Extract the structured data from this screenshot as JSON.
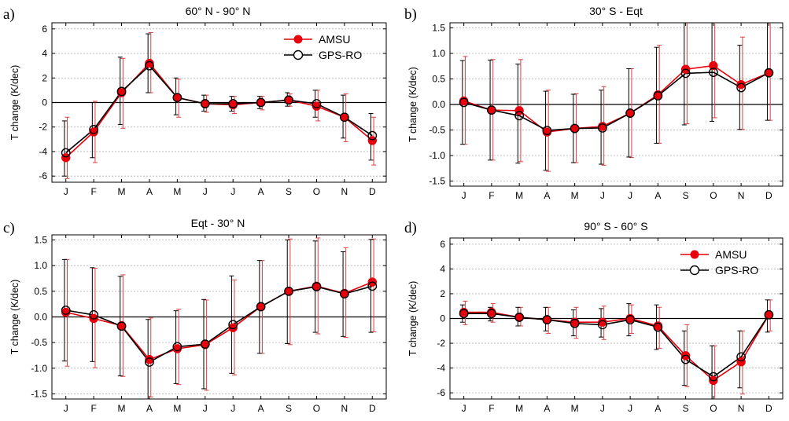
{
  "colors": {
    "amsu": "#e8000b",
    "amsu_error": "#e04040",
    "gps": "#000000",
    "grid": "#b0b0b0",
    "zero_line": "#000000"
  },
  "chart_data": [
    {
      "type": "line",
      "panel_label": "a)",
      "title": "60° N - 90° N",
      "ylabel": "T change (K/dec)",
      "xlabel": "",
      "categories": [
        "J",
        "F",
        "M",
        "A",
        "M",
        "J",
        "J",
        "A",
        "S",
        "O",
        "N",
        "D"
      ],
      "ylim": [
        -6.5,
        6.5
      ],
      "yticks": [
        -6,
        -4,
        -2,
        0,
        2,
        4,
        6
      ],
      "ytick_labels": [
        "-6",
        "-4",
        "-2",
        "0",
        "2",
        "4",
        "6"
      ],
      "grid": "horizontal dotted",
      "legend": "top-right",
      "series": [
        {
          "name": "AMSU",
          "values": [
            -4.5,
            -2.4,
            0.8,
            3.2,
            0.4,
            -0.1,
            -0.2,
            0.0,
            0.2,
            -0.3,
            -1.2,
            -3.1
          ],
          "err_low": [
            -6.2,
            -4.9,
            -2.1,
            0.8,
            -1.2,
            -0.8,
            -0.9,
            -0.6,
            -0.3,
            -1.5,
            -3.2,
            -5.1
          ],
          "err_high": [
            -1.2,
            0.1,
            3.6,
            5.7,
            1.9,
            0.6,
            0.5,
            0.5,
            0.7,
            1.0,
            0.7,
            -1.2
          ]
        },
        {
          "name": "GPS-RO",
          "values": [
            -4.1,
            -2.2,
            0.9,
            3.0,
            0.4,
            -0.1,
            -0.1,
            0.0,
            0.2,
            -0.1,
            -1.2,
            -2.7
          ],
          "err_low": [
            -6.0,
            -4.5,
            -1.8,
            0.8,
            -1.0,
            -0.7,
            -0.7,
            -0.5,
            -0.3,
            -1.2,
            -2.9,
            -4.7
          ],
          "err_high": [
            -1.5,
            0.0,
            3.7,
            5.6,
            2.0,
            0.6,
            0.5,
            0.5,
            0.8,
            1.0,
            0.6,
            -0.9
          ]
        }
      ]
    },
    {
      "type": "line",
      "panel_label": "b)",
      "title": "30° S - Eqt",
      "ylabel": "T change (K/dec)",
      "xlabel": "",
      "categories": [
        "J",
        "F",
        "M",
        "A",
        "M",
        "J",
        "J",
        "A",
        "S",
        "O",
        "N",
        "D"
      ],
      "ylim": [
        -1.6,
        1.6
      ],
      "yticks": [
        -1.5,
        -1.0,
        -0.5,
        0.0,
        0.5,
        1.0,
        1.5
      ],
      "ytick_labels": [
        "-1.5",
        "-1.0",
        "-0.5",
        "0.0",
        "0.5",
        "1.0",
        "1.5"
      ],
      "grid": "horizontal dotted",
      "legend": "none",
      "series": [
        {
          "name": "AMSU",
          "values": [
            0.07,
            -0.11,
            -0.12,
            -0.54,
            -0.47,
            -0.43,
            -0.17,
            0.19,
            0.69,
            0.76,
            0.39,
            0.62
          ],
          "err_low": [
            -0.78,
            -1.09,
            -1.12,
            -1.31,
            -1.14,
            -1.19,
            -1.04,
            -0.76,
            -0.38,
            -0.26,
            -0.49,
            -0.31
          ],
          "err_high": [
            0.94,
            0.88,
            0.88,
            0.28,
            0.21,
            0.35,
            0.7,
            1.16,
            1.6,
            1.6,
            1.32,
            1.6
          ]
        },
        {
          "name": "GPS-RO",
          "values": [
            0.04,
            -0.11,
            -0.22,
            -0.51,
            -0.47,
            -0.46,
            -0.17,
            0.17,
            0.61,
            0.63,
            0.33,
            0.62
          ],
          "err_low": [
            -0.78,
            -1.09,
            -1.15,
            -1.29,
            -1.14,
            -1.17,
            -1.03,
            -0.76,
            -0.4,
            -0.33,
            -0.49,
            -0.31
          ],
          "err_high": [
            0.86,
            0.87,
            0.79,
            0.26,
            0.2,
            0.28,
            0.7,
            1.12,
            1.6,
            1.6,
            1.16,
            1.6
          ]
        }
      ]
    },
    {
      "type": "line",
      "panel_label": "c)",
      "title": "Eqt - 30° N",
      "ylabel": "T change (K/dec)",
      "xlabel": "",
      "categories": [
        "J",
        "F",
        "M",
        "A",
        "M",
        "J",
        "J",
        "A",
        "S",
        "O",
        "N",
        "D"
      ],
      "ylim": [
        -1.6,
        1.6
      ],
      "yticks": [
        -1.5,
        -1.0,
        -0.5,
        0.0,
        0.5,
        1.0,
        1.5
      ],
      "ytick_labels": [
        "-1.5",
        "-1.0",
        "-0.5",
        "0.0",
        "0.5",
        "1.0",
        "1.5"
      ],
      "grid": "horizontal dotted",
      "legend": "none",
      "series": [
        {
          "name": "AMSU",
          "values": [
            0.09,
            -0.03,
            -0.17,
            -0.83,
            -0.62,
            -0.54,
            -0.21,
            0.2,
            0.5,
            0.6,
            0.46,
            0.68
          ],
          "err_low": [
            -0.96,
            -0.99,
            -1.16,
            -1.56,
            -1.32,
            -1.43,
            -1.13,
            -0.71,
            -0.54,
            -0.33,
            -0.4,
            -0.29
          ],
          "err_high": [
            1.12,
            0.95,
            0.82,
            -0.02,
            0.15,
            0.33,
            0.72,
            1.1,
            1.52,
            1.54,
            1.35,
            1.52
          ]
        },
        {
          "name": "GPS-RO",
          "values": [
            0.13,
            0.04,
            -0.18,
            -0.88,
            -0.58,
            -0.53,
            -0.15,
            0.2,
            0.5,
            0.59,
            0.45,
            0.6
          ],
          "err_low": [
            -0.86,
            -0.87,
            -1.15,
            -1.6,
            -1.3,
            -1.4,
            -1.1,
            -0.71,
            -0.52,
            -0.3,
            -0.38,
            -0.3
          ],
          "err_high": [
            1.12,
            0.96,
            0.79,
            -0.05,
            0.12,
            0.34,
            0.8,
            1.1,
            1.5,
            1.48,
            1.27,
            1.51
          ]
        }
      ]
    },
    {
      "type": "line",
      "panel_label": "d)",
      "title": "90° S - 60° S",
      "ylabel": "T change (K/dec)",
      "xlabel": "",
      "categories": [
        "J",
        "F",
        "M",
        "A",
        "M",
        "J",
        "J",
        "A",
        "S",
        "O",
        "N",
        "D"
      ],
      "ylim": [
        -6.5,
        6.5
      ],
      "yticks": [
        -6,
        -4,
        -2,
        0,
        2,
        4,
        6
      ],
      "ytick_labels": [
        "-6",
        "-4",
        "-2",
        "0",
        "2",
        "4",
        "6"
      ],
      "grid": "horizontal dotted",
      "legend": "top-right",
      "series": [
        {
          "name": "AMSU",
          "values": [
            0.5,
            0.5,
            0.1,
            -0.1,
            -0.3,
            -0.3,
            0.0,
            -0.6,
            -3.0,
            -5.0,
            -3.5,
            0.3
          ],
          "err_low": [
            -0.5,
            -0.3,
            -0.6,
            -1.2,
            -1.6,
            -1.7,
            -1.2,
            -2.4,
            -5.5,
            -6.5,
            -6.1,
            -1.0
          ],
          "err_high": [
            1.4,
            1.2,
            0.9,
            0.9,
            0.9,
            1.0,
            1.1,
            0.9,
            -0.5,
            -2.2,
            -1.0,
            1.5
          ]
        },
        {
          "name": "GPS-RO",
          "values": [
            0.4,
            0.4,
            0.1,
            -0.1,
            -0.4,
            -0.5,
            -0.1,
            -0.7,
            -3.3,
            -4.7,
            -3.1,
            0.3
          ],
          "err_low": [
            -0.3,
            -0.2,
            -0.6,
            -1.0,
            -1.4,
            -1.5,
            -1.4,
            -2.5,
            -5.4,
            -6.5,
            -5.6,
            -1.1
          ],
          "err_high": [
            1.1,
            0.9,
            0.9,
            0.9,
            0.7,
            0.8,
            1.2,
            1.1,
            -1.0,
            -2.2,
            -1.0,
            1.5
          ]
        }
      ]
    }
  ]
}
